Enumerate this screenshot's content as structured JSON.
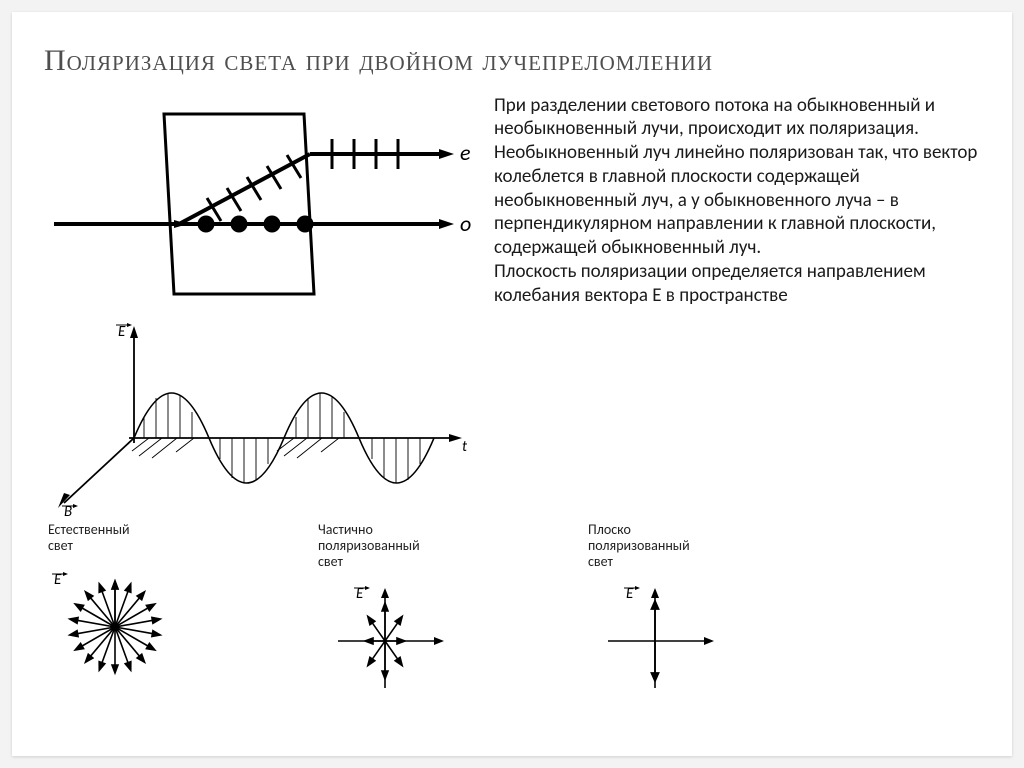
{
  "title": "Поляризация света при двойном лучепреломлении",
  "body": "При разделении светового потока на обыкновенный и необыкновенный лучи, происходит их поляризация. Необыкновенный луч линейно поляризован так, что вектор колеблется в главной плоскости содержащей необыкновенный луч, а у обыкновенного луча – в перпендикулярном направлении к главной плоскости, содержащей обыкновенный луч.\nПлоскость поляризации определяется направлением колебания вектора Е в пространстве",
  "diagram": {
    "e_label": "e",
    "o_label": "o",
    "ray_stroke": "#000000",
    "dot_fill": "#000000",
    "tick_stroke": "#000000"
  },
  "wave": {
    "E_label": "E",
    "t_label": "t",
    "B_label": "B",
    "stroke": "#000000"
  },
  "polarizations": [
    {
      "label": "Естественный\nсвет",
      "type": "natural",
      "vec_label": "E"
    },
    {
      "label": "Частично\nполяризованный\nсвет",
      "type": "partial",
      "vec_label": "E"
    },
    {
      "label": "Плоско\nполяризованный\nсвет",
      "type": "plane",
      "vec_label": "E"
    }
  ],
  "colors": {
    "background": "#ffffff",
    "title": "#4e4e4e",
    "text": "#1a1a1a",
    "stroke": "#000000"
  }
}
